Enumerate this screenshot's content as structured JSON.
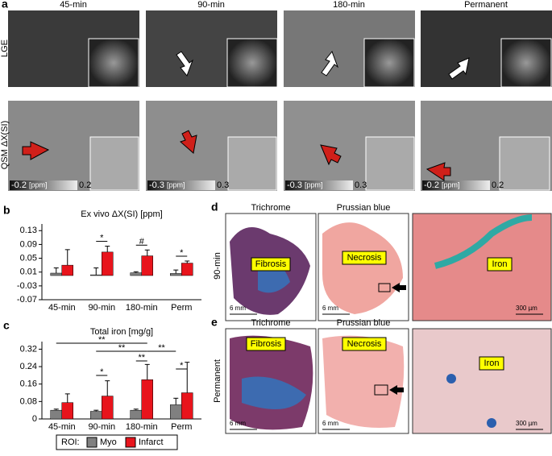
{
  "panel_a": {
    "label": "a",
    "columns": [
      "45-min",
      "90-min",
      "180-min",
      "Permanent"
    ],
    "rows": [
      "LGE",
      "QSM ΔX(SI)"
    ],
    "scales": [
      {
        "min": "-0.2",
        "unit": "[ppm]",
        "max": "0.2"
      },
      {
        "min": "-0.3",
        "unit": "[ppm]",
        "max": "0.3"
      },
      {
        "min": "-0.3",
        "unit": "[ppm]",
        "max": "0.3"
      },
      {
        "min": "-0.2",
        "unit": "[ppm]",
        "max": "0.2"
      }
    ]
  },
  "panel_b": {
    "label": "b"
  },
  "panel_c": {
    "label": "c"
  },
  "legend": {
    "title": "ROI:"
  },
  "panel_d": {
    "label": "d",
    "row": "90-min",
    "columns": [
      "Trichrome",
      "Prussian blue"
    ],
    "callouts": [
      "Fibrosis",
      "Necrosis",
      "Iron"
    ],
    "scalebars": [
      "6 mm",
      "6 mm",
      "300 µm"
    ]
  },
  "panel_e": {
    "label": "e",
    "row": "Permanent",
    "columns": [
      "Trichrome",
      "Prussian blue"
    ],
    "callouts": [
      "Fibrosis",
      "Necrosis",
      "Iron"
    ],
    "scalebars": [
      "6 mm",
      "6 mm",
      "300 µm"
    ]
  },
  "chart_data": [
    {
      "type": "bar",
      "title": "Ex vivo ΔX(SI) [ppm]",
      "categories": [
        "45-min",
        "90-min",
        "180-min",
        "Perm"
      ],
      "series": [
        {
          "color": "#808080",
          "values": [
            0.007,
            0.002,
            0.008,
            0.006
          ],
          "errors": [
            0.015,
            0.02,
            0.003,
            0.01
          ]
        },
        {
          "color": "#e8141c",
          "values": [
            0.03,
            0.068,
            0.057,
            0.036
          ],
          "errors": [
            0.045,
            0.017,
            0.017,
            0.006
          ]
        }
      ],
      "ylim": [
        -0.07,
        0.14
      ],
      "yticks": [
        -0.07,
        -0.03,
        0.01,
        0.05,
        0.09,
        0.13
      ],
      "annotations": [
        "*",
        "#",
        "*"
      ]
    },
    {
      "type": "bar",
      "title": "Total iron [mg/g]",
      "categories": [
        "45-min",
        "90-min",
        "180-min",
        "Perm"
      ],
      "series": [
        {
          "name": "Myo",
          "color": "#808080",
          "values": [
            0.04,
            0.035,
            0.04,
            0.065
          ],
          "errors": [
            0.005,
            0.005,
            0.005,
            0.03
          ]
        },
        {
          "name": "Infarct",
          "color": "#e8141c",
          "values": [
            0.075,
            0.105,
            0.18,
            0.12
          ],
          "errors": [
            0.04,
            0.07,
            0.07,
            0.14
          ]
        }
      ],
      "ylim": [
        0,
        0.34
      ],
      "yticks": [
        0,
        0.08,
        0.16,
        0.24,
        0.32
      ],
      "annotations": [
        "**",
        "**",
        "**",
        "*",
        "**",
        "*"
      ]
    }
  ]
}
